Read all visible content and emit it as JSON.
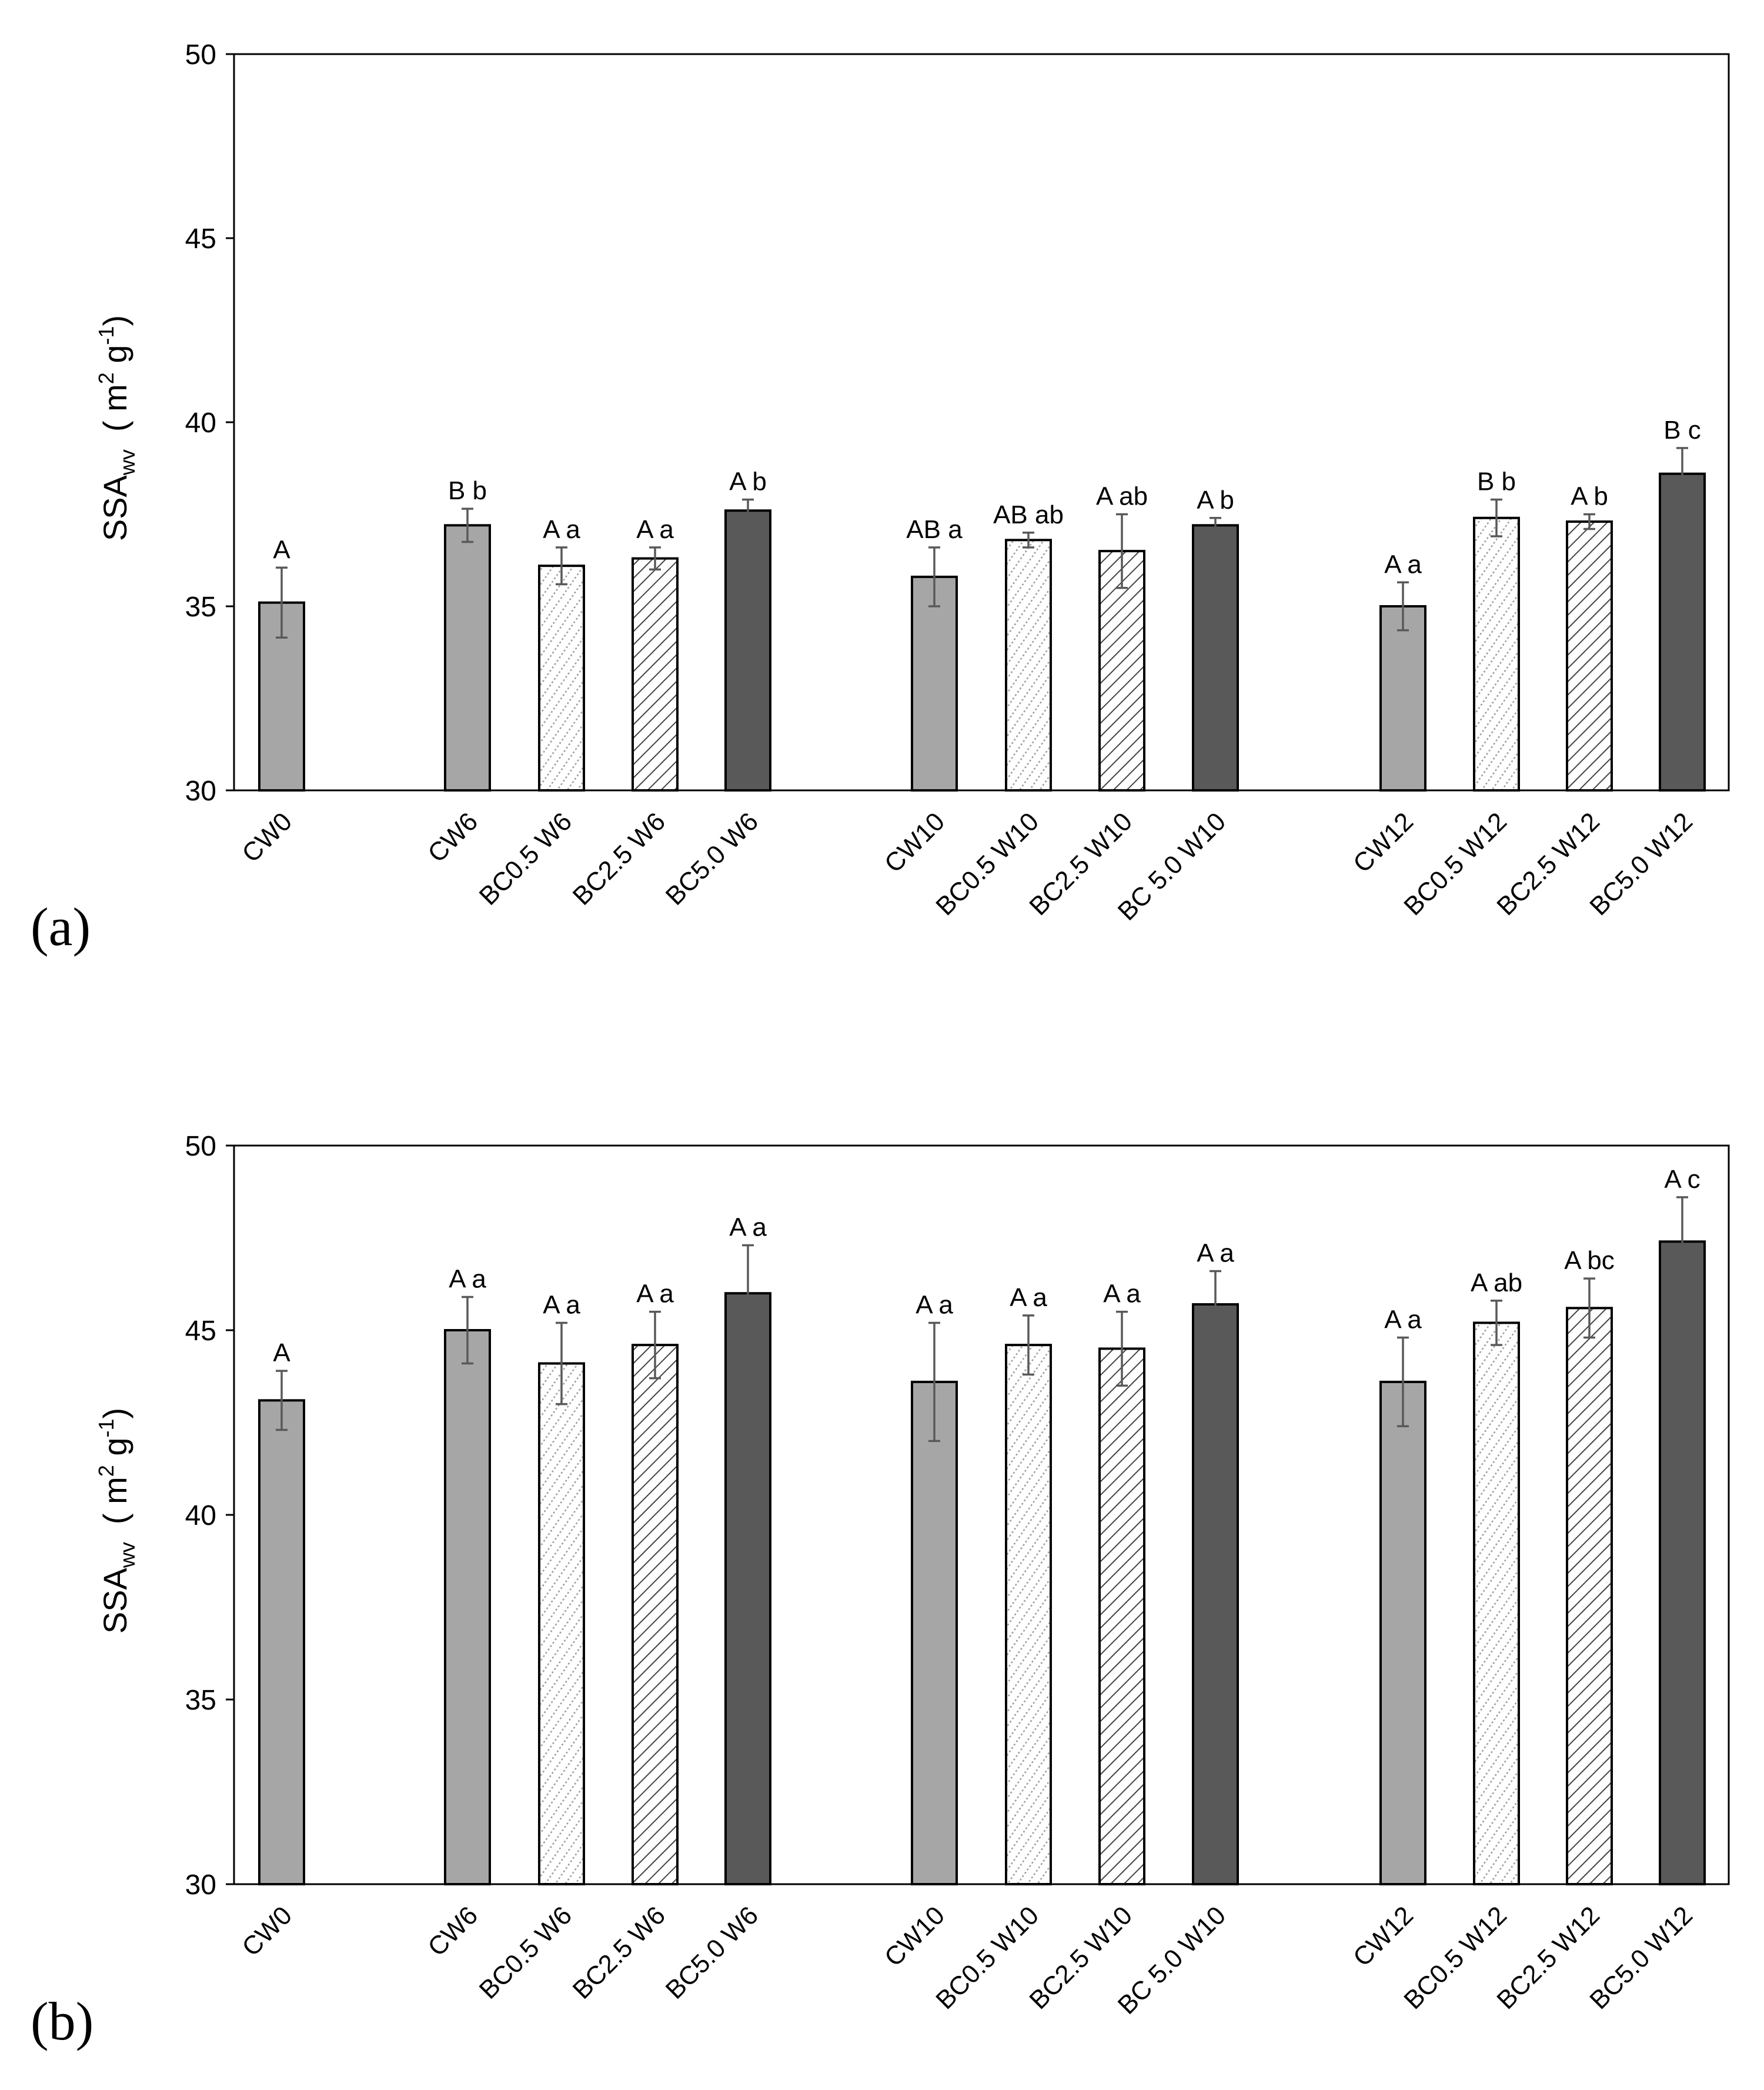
{
  "figure": {
    "panel_labels": [
      "(a)",
      "(b)"
    ]
  },
  "colors": {
    "light_gray": "#a6a6a6",
    "dark_gray": "#595959",
    "hatch_line": "#444444",
    "error_bar": "#595959",
    "axis": "#000000"
  },
  "chart_data": [
    {
      "type": "bar",
      "panel": "(a)",
      "title": "",
      "xlabel": "",
      "ylabel_main": "SSA",
      "ylabel_sub": "wv",
      "ylabel_unit_open": "( m",
      "ylabel_unit_sup1": "2",
      "ylabel_unit_mid": " g",
      "ylabel_unit_sup2": "-1",
      "ylabel_unit_close": ")",
      "ylim": [
        30,
        50
      ],
      "yticks": [
        30,
        35,
        40,
        45,
        50
      ],
      "grid": false,
      "categories": [
        "CW0",
        "CW6",
        "BC0.5 W6",
        "BC2.5 W6",
        "BC5.0 W6",
        "CW10",
        "BC0.5 W10",
        "BC2.5 W10",
        "BC 5.0 W10",
        "CW12",
        "BC0.5 W12",
        "BC2.5 W12",
        "BC5.0 W12"
      ],
      "fills": [
        "light",
        "light",
        "dotted",
        "hatched",
        "dark",
        "light",
        "dotted",
        "hatched",
        "dark",
        "light",
        "dotted",
        "hatched",
        "dark"
      ],
      "values": [
        35.1,
        37.2,
        36.1,
        36.3,
        37.6,
        35.8,
        36.8,
        36.5,
        37.2,
        35.0,
        37.4,
        37.3,
        38.6
      ],
      "errors": [
        0.95,
        0.45,
        0.5,
        0.3,
        0.3,
        0.8,
        0.2,
        1.0,
        0.2,
        0.65,
        0.5,
        0.2,
        0.7
      ],
      "letters": [
        "A",
        "B b",
        "A a",
        "A a",
        "A b",
        "AB a",
        "AB ab",
        "A ab",
        "A b",
        "A a",
        "B b",
        "A b",
        "B c"
      ]
    },
    {
      "type": "bar",
      "panel": "(b)",
      "title": "",
      "xlabel": "",
      "ylabel_main": "SSA",
      "ylabel_sub": "wv",
      "ylabel_unit_open": "( m",
      "ylabel_unit_sup1": "2",
      "ylabel_unit_mid": " g",
      "ylabel_unit_sup2": "-1",
      "ylabel_unit_close": ")",
      "ylim": [
        30,
        50
      ],
      "yticks": [
        30,
        35,
        40,
        45,
        50
      ],
      "grid": false,
      "categories": [
        "CW0",
        "CW6",
        "BC0.5 W6",
        "BC2.5 W6",
        "BC5.0 W6",
        "CW10",
        "BC0.5 W10",
        "BC2.5 W10",
        "BC 5.0 W10",
        "CW12",
        "BC0.5 W12",
        "BC2.5 W12",
        "BC5.0 W12"
      ],
      "fills": [
        "light",
        "light",
        "dotted",
        "hatched",
        "dark",
        "light",
        "dotted",
        "hatched",
        "dark",
        "light",
        "dotted",
        "hatched",
        "dark"
      ],
      "values": [
        43.1,
        45.0,
        44.1,
        44.6,
        46.0,
        43.6,
        44.6,
        44.5,
        45.7,
        43.6,
        45.2,
        45.6,
        47.4
      ],
      "errors": [
        0.8,
        0.9,
        1.1,
        0.9,
        1.3,
        1.6,
        0.8,
        1.0,
        0.9,
        1.2,
        0.6,
        0.8,
        1.2
      ],
      "letters": [
        "A",
        "A a",
        "A a",
        "A a",
        "A a",
        "A a",
        "A a",
        "A a",
        "A a",
        "A a",
        "A ab",
        "A bc",
        "A c"
      ]
    }
  ]
}
